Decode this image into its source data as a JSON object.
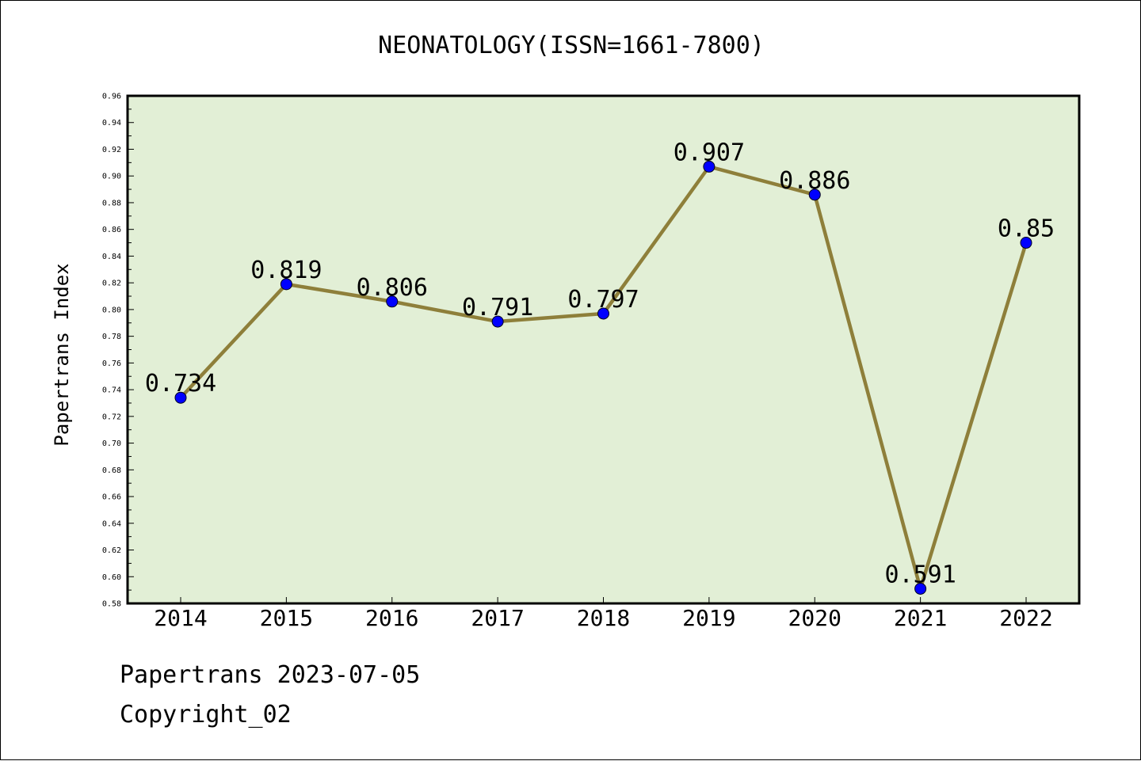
{
  "chart_data": {
    "type": "line",
    "title": "NEONATOLOGY(ISSN=1661-7800)",
    "xlabel": "",
    "ylabel": "Papertrans Index",
    "categories": [
      "2014",
      "2015",
      "2016",
      "2017",
      "2018",
      "2019",
      "2020",
      "2021",
      "2022"
    ],
    "series": [
      {
        "values": [
          0.734,
          0.819,
          0.806,
          0.791,
          0.797,
          0.907,
          0.886,
          0.591,
          0.85
        ],
        "data_labels": [
          "0.734",
          "0.819",
          "0.806",
          "0.791",
          "0.797",
          "0.907",
          "0.886",
          "0.591",
          "0.85"
        ]
      }
    ],
    "ylim": [
      0.58,
      0.96
    ],
    "yticks": [
      "0.58",
      "0.60",
      "0.62",
      "0.64",
      "0.66",
      "0.68",
      "0.70",
      "0.72",
      "0.74",
      "0.76",
      "0.78",
      "0.80",
      "0.82",
      "0.84",
      "0.86",
      "0.88",
      "0.90",
      "0.92",
      "0.94",
      "0.96"
    ],
    "grid": false,
    "colors": {
      "plot_background": "#e2efd6",
      "line": "#8e7f3a",
      "marker": "#0000ff"
    }
  },
  "footer": {
    "source": "Papertrans 2023-07-05",
    "copyright": "Copyright_02"
  }
}
